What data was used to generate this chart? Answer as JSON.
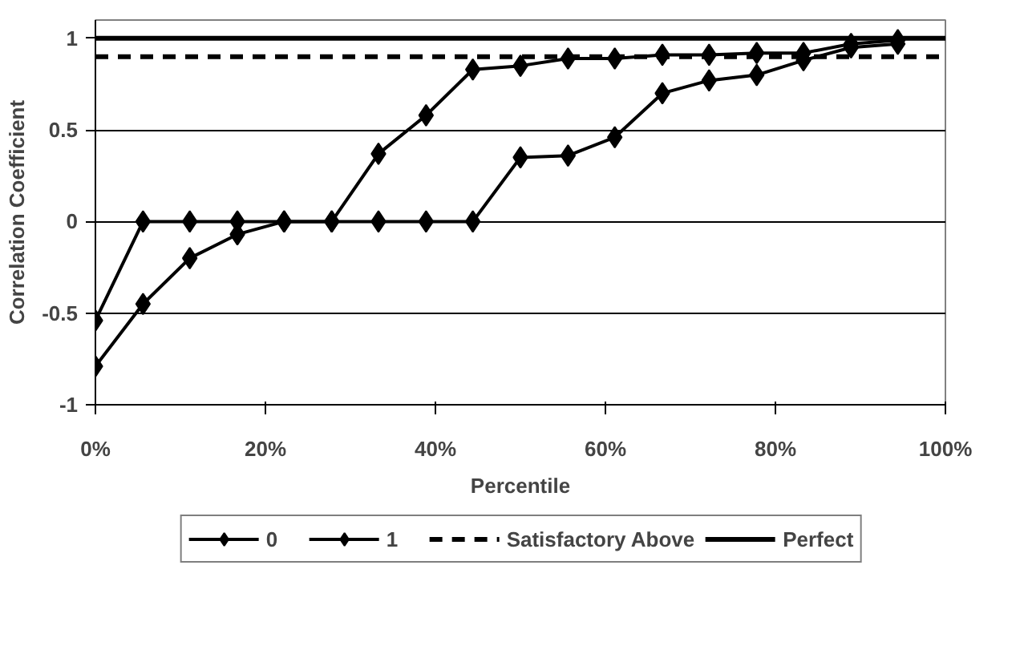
{
  "chart_data": {
    "type": "line",
    "xlabel": "Percentile",
    "ylabel": "Correlation Coefficient",
    "x": [
      0,
      5.6,
      11.1,
      16.7,
      22.2,
      27.8,
      33.3,
      38.9,
      44.4,
      50,
      55.6,
      61.1,
      66.7,
      72.2,
      77.8,
      83.3,
      88.9,
      94.4
    ],
    "series": [
      {
        "name": "0",
        "color": "#000000",
        "marker": "diamond",
        "values": [
          -0.79,
          -0.45,
          -0.2,
          -0.07,
          0,
          0,
          0,
          0,
          0,
          0.35,
          0.36,
          0.46,
          0.7,
          0.77,
          0.8,
          0.88,
          0.95,
          0.97
        ]
      },
      {
        "name": "1",
        "color": "#000000",
        "marker": "diamond",
        "values": [
          -0.54,
          0,
          0,
          0,
          0,
          0,
          0.37,
          0.58,
          0.83,
          0.85,
          0.89,
          0.89,
          0.91,
          0.91,
          0.92,
          0.92,
          0.97,
          0.99
        ]
      }
    ],
    "ref_lines": [
      {
        "axis": "y",
        "value": 0.9,
        "label": "Satisfactory Above",
        "color": "#000000",
        "line_style": "dashed"
      },
      {
        "axis": "y",
        "value": 1,
        "label": "Perfect",
        "color": "#000000",
        "line_style": "solid"
      }
    ],
    "xlim": [
      0,
      100
    ],
    "xticks": [
      {
        "value": 0,
        "label": "0%"
      },
      {
        "value": 20,
        "label": "20%"
      },
      {
        "value": 40,
        "label": "40%"
      },
      {
        "value": 60,
        "label": "60%"
      },
      {
        "value": 80,
        "label": "80%"
      },
      {
        "value": 100,
        "label": "100%"
      }
    ],
    "ylim": [
      -1,
      1.1
    ],
    "yticks": [
      -1,
      -0.5,
      0,
      0.5,
      1
    ],
    "grid": "y",
    "legend": "bottom"
  }
}
